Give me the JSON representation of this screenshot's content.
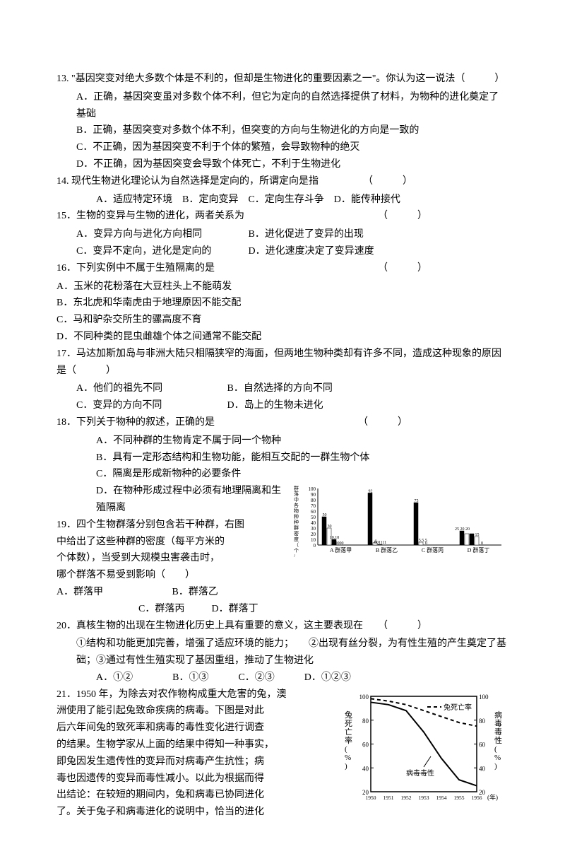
{
  "q13": {
    "stem": "13. \"基因突变对绝大多数个体是不利的，但却是生物进化的重要因素之一\"。你认为这一说法（　　　）",
    "A": "A．正确，基因突变虽对多数个体不利，但它为定向的自然选择提供了材料，为物种的进化奠定了基础",
    "B": "B．正确，基因突变对多数个体不利，但突变的方向与生物进化的方向是一致的",
    "C": "C．不正确，因为基因突变不利于个体的繁殖，会导致物种的绝灭",
    "D": "D．不正确，因为基因突变会导致个体死亡，不利于生物进化"
  },
  "q14": {
    "stem": "14. 现代生物进化理论认为自然选择是定向的，所谓定向是指　　　　　（　　　）",
    "opts": "A．适应特定环境　B．定向变异　C．定向生存斗争　D．能传种接代"
  },
  "q15": {
    "stem": "15．生物的变异与生物的进化，两者关系为　　　　　　　　　　　　　　（　　　）",
    "A": "A．变异方向与进化方向相同",
    "B": "B．进化促进了变异的出现",
    "C": "C．变异不定向，进化是定向的",
    "D": "D．进化速度决定了变异速度"
  },
  "q16": {
    "stem": "16．下列实例中不属于生殖隔离的是　　　　　　　　　　　　　　　　　（　　　）",
    "A": "A．玉米的花粉落在大豆柱头上不能萌发",
    "B": "B．东北虎和华南虎由于地理原因不能交配",
    "C": "C．马和驴杂交所生的骡高度不育",
    "D": "D．不同种类的昆虫雌雄个体之间通常不能交配"
  },
  "q17": {
    "stem": "17．马达加斯加岛与非洲大陆只相隔狭窄的海面，但两地生物种类却有许多不同，造成这种现象的原因是（　　　）",
    "A": "A．他们的祖先不同",
    "B": "B．自然选择的方向不同",
    "C": "C．变异的方向不同",
    "D": "D．岛上的生物未进化"
  },
  "q18": {
    "stem": "18．下列关于物种的叙述，正确的是　　　　　　　　　　　　　　　（　　　）",
    "A": "A．不同种群的生物肯定不属于同一个物种",
    "B": "B．具有一定形态结构和生物功能，能相互交配的一群生物个体",
    "C": "C．隔离是形成新物种的必要条件",
    "D": "D．在物种形成过程中必须有地理隔离和生殖隔离"
  },
  "q19": {
    "stem1": "19．四个生物群落分别包含若干种群，右图",
    "stem2": "中给出了这些种群的密度（每平方米的",
    "stem3": "个体数），当受到大规模虫害袭击时，",
    "stem4": "哪个群落不易受到影响（　　）",
    "A": "A．群落甲",
    "B": "B．群落乙",
    "C": "C．群落丙",
    "D": "D．群落丁"
  },
  "q20": {
    "stem": "20．真核生物的出现在生物进化历史上具有重要的意义，这主要表现在　　（　　　）",
    "items": "①结构和功能更加完善，增强了适应环境的能力；　　②出现有丝分裂，为有性生殖的产生奠定了基础；③通过有性生殖实现了基因重组，推动了生物进化",
    "opts": "A．①②　　　　B．①③　　　C．②③　　　D．①②③"
  },
  "q21": {
    "l1": "21．1950 年，为除去对农作物构成重大危害的兔，澳",
    "l2": "洲使用了能引起兔致命疾病的病毒。下图是对此",
    "l3": "后六年间兔的致死率和病毒的毒性变化进行调查",
    "l4": "的结果。生物学家从上面的结果中得知一种事实，",
    "l5": "即兔因发生遗传性的变异而对病毒产生抗性；病",
    "l6": "毒也因遗传的变异而毒性减小。以此为根据而得",
    "l7": "出结论：在较短的期间内，兔和病毒已协同进化",
    "l8": "了。关于兔子和病毒进化的说明中，恰当的进化"
  },
  "barChart": {
    "yLabel": "群落中各物种种群密度（个/米²）",
    "yTicks": [
      "100",
      "90",
      "80",
      "70",
      "60",
      "50",
      "40",
      "30",
      "20",
      "10",
      "0"
    ],
    "groups": [
      {
        "label": "A 群落甲",
        "bars": [
          {
            "v": 50,
            "t": "50"
          },
          {
            "v": 30,
            "t": "30"
          },
          {
            "v": 10,
            "t": "10.10"
          },
          {
            "v": 0,
            "t": "0000"
          }
        ]
      },
      {
        "label": "B 群落乙",
        "bars": [
          {
            "v": 92,
            "t": "92"
          },
          {
            "v": 4,
            "t": "4"
          },
          {
            "v": 1,
            "t": "001111"
          }
        ]
      },
      {
        "label": "C 群落丙",
        "bars": [
          {
            "v": 75,
            "t": "75"
          },
          {
            "v": 5,
            "t": "5.5.5.5"
          },
          {
            "v": 0,
            "t": "0"
          }
        ]
      },
      {
        "label": "D 群落丁",
        "bars": [
          {
            "v": 25,
            "t": "25 20 20"
          },
          {
            "v": 20,
            "t": ""
          },
          {
            "v": 20,
            "t": ""
          },
          {
            "v": 15,
            "t": "15"
          },
          {
            "v": 0,
            "t": "0"
          }
        ]
      }
    ]
  },
  "lineChart": {
    "leftLabel": "兔死亡率(%)",
    "rightLabel": "病毒毒性(%)",
    "legend1": "兔死亡率",
    "legend2": "病毒毒性",
    "yTicks": [
      "100",
      "80",
      "60",
      "40",
      "20"
    ],
    "xTicks": [
      "1950",
      "1951",
      "1952",
      "1953",
      "1954",
      "1955",
      "1956"
    ],
    "xAxisLabel": "(年)",
    "rabbit": [
      [
        0,
        95
      ],
      [
        1,
        93
      ],
      [
        2,
        88
      ],
      [
        3,
        70
      ],
      [
        4,
        48
      ],
      [
        5,
        30
      ],
      [
        6,
        25
      ]
    ],
    "virus": [
      [
        0,
        98
      ],
      [
        1,
        96
      ],
      [
        2,
        93
      ],
      [
        3,
        88
      ],
      [
        4,
        83
      ],
      [
        5,
        78
      ],
      [
        6,
        75
      ]
    ]
  }
}
